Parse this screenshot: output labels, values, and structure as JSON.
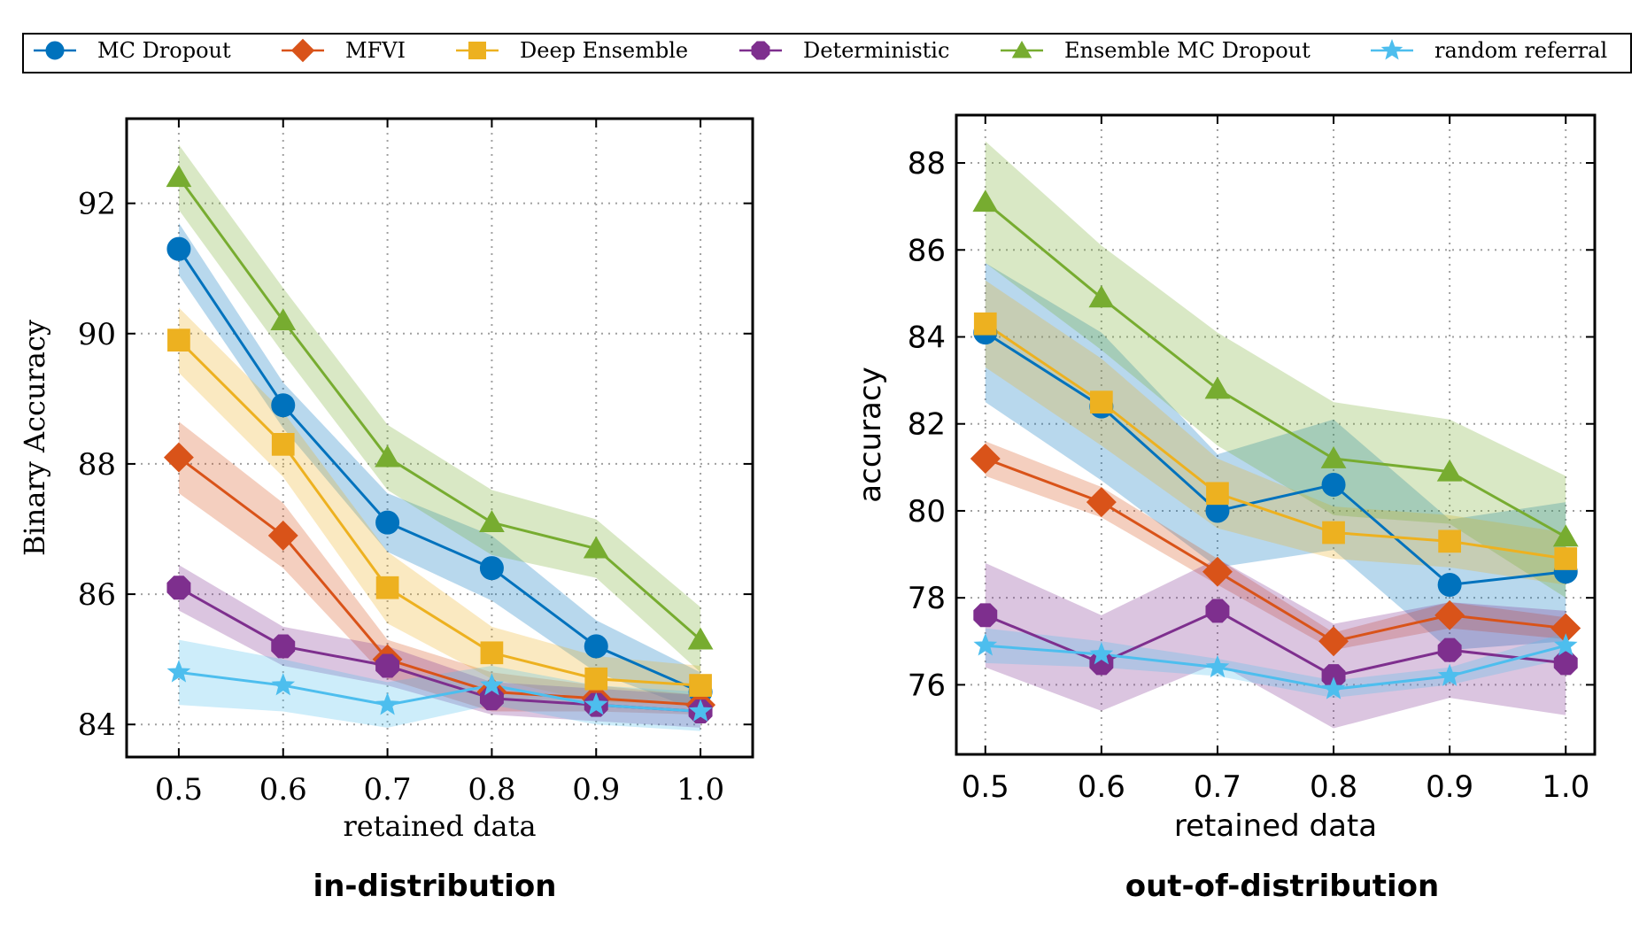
{
  "legend": {
    "placement": "top, outside plots",
    "entries": [
      {
        "name": "MC Dropout",
        "color": "#0072BD",
        "marker": "circle"
      },
      {
        "name": "MFVI",
        "color": "#D95319",
        "marker": "diamond"
      },
      {
        "name": "Deep Ensemble",
        "color": "#EDB120",
        "marker": "square"
      },
      {
        "name": "Deterministic",
        "color": "#7E2F8E",
        "marker": "hexagon"
      },
      {
        "name": "Ensemble MC Dropout",
        "color": "#77AC30",
        "marker": "triangle"
      },
      {
        "name": "random referral",
        "color": "#4DBEEE",
        "marker": "star"
      }
    ]
  },
  "chart_data": [
    {
      "type": "line",
      "caption": "in-distribution",
      "xlabel": "retained data",
      "ylabel": "Binary Accuracy",
      "x": [
        0.5,
        0.6,
        0.7,
        0.8,
        0.9,
        1.0
      ],
      "xticks": [
        "0.5",
        "0.6",
        "0.7",
        "0.8",
        "0.9",
        "1.0"
      ],
      "xlim": [
        0.45,
        1.05
      ],
      "ylim": [
        83.5,
        93.3
      ],
      "yticks": [
        "84",
        "86",
        "88",
        "90",
        "92"
      ],
      "grid": true,
      "series": [
        {
          "name": "MC Dropout",
          "values": [
            91.3,
            88.9,
            87.1,
            86.4,
            85.2,
            84.5
          ],
          "band": [
            0.4,
            0.35,
            0.45,
            0.5,
            0.4,
            0.3
          ]
        },
        {
          "name": "MFVI",
          "values": [
            88.1,
            86.9,
            85.0,
            84.5,
            84.4,
            84.3
          ],
          "band": [
            0.55,
            0.5,
            0.3,
            0.3,
            0.2,
            0.15
          ]
        },
        {
          "name": "Deep Ensemble",
          "values": [
            89.9,
            88.3,
            86.1,
            85.1,
            84.7,
            84.6
          ],
          "band": [
            0.5,
            0.5,
            0.55,
            0.4,
            0.35,
            0.3
          ]
        },
        {
          "name": "Deterministic",
          "values": [
            86.1,
            85.2,
            84.9,
            84.4,
            84.3,
            84.2
          ],
          "band": [
            0.35,
            0.3,
            0.3,
            0.25,
            0.25,
            0.25
          ]
        },
        {
          "name": "Ensemble MC Dropout",
          "values": [
            92.4,
            90.2,
            88.1,
            87.1,
            86.7,
            85.3
          ],
          "band": [
            0.5,
            0.5,
            0.5,
            0.5,
            0.45,
            0.5
          ]
        },
        {
          "name": "random referral",
          "values": [
            84.8,
            84.6,
            84.3,
            84.6,
            84.3,
            84.2
          ],
          "band": [
            0.5,
            0.4,
            0.35,
            0.3,
            0.3,
            0.3
          ]
        }
      ]
    },
    {
      "type": "line",
      "caption": "out-of-distribution",
      "xlabel": "retained data",
      "ylabel": "accuracy",
      "x": [
        0.5,
        0.6,
        0.7,
        0.8,
        0.9,
        1.0
      ],
      "xticks": [
        "0.5",
        "0.6",
        "0.7",
        "0.8",
        "0.9",
        "1.0"
      ],
      "xlim": [
        0.475,
        1.025
      ],
      "ylim": [
        74.4,
        89.1
      ],
      "yticks": [
        "76",
        "78",
        "80",
        "82",
        "84",
        "86",
        "88"
      ],
      "grid": true,
      "series": [
        {
          "name": "MC Dropout",
          "values": [
            84.1,
            82.4,
            80.0,
            80.6,
            78.3,
            78.6
          ],
          "band": [
            1.6,
            1.7,
            1.3,
            1.5,
            1.5,
            1.6
          ]
        },
        {
          "name": "MFVI",
          "values": [
            81.2,
            80.2,
            78.6,
            77.0,
            77.6,
            77.3
          ],
          "band": [
            0.4,
            0.35,
            0.3,
            0.2,
            0.3,
            0.25
          ]
        },
        {
          "name": "Deep Ensemble",
          "values": [
            84.3,
            82.5,
            80.4,
            79.5,
            79.3,
            78.9
          ],
          "band": [
            1.0,
            1.0,
            0.8,
            0.6,
            0.6,
            0.6
          ]
        },
        {
          "name": "Deterministic",
          "values": [
            77.6,
            76.5,
            77.7,
            76.2,
            76.8,
            76.5
          ],
          "band": [
            1.2,
            1.1,
            1.2,
            1.2,
            1.1,
            1.2
          ]
        },
        {
          "name": "Ensemble MC Dropout",
          "values": [
            87.1,
            84.9,
            82.8,
            81.2,
            80.9,
            79.4
          ],
          "band": [
            1.4,
            1.2,
            1.3,
            1.3,
            1.2,
            1.4
          ]
        },
        {
          "name": "random referral",
          "values": [
            76.9,
            76.7,
            76.4,
            75.9,
            76.2,
            76.9
          ],
          "band": [
            0.4,
            0.3,
            0.2,
            0.2,
            0.2,
            0.3
          ]
        }
      ]
    }
  ]
}
